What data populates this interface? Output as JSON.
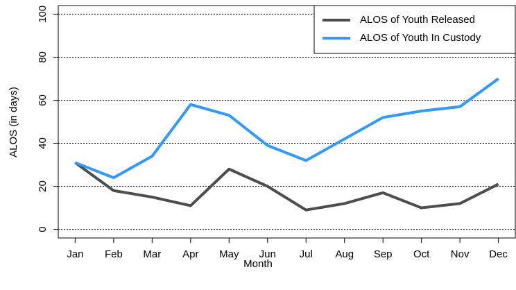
{
  "chart_data": {
    "type": "line",
    "x_label": "Month",
    "y_label": "ALOS (in days)",
    "categories": [
      "Jan",
      "Feb",
      "Mar",
      "Apr",
      "May",
      "Jun",
      "Jul",
      "Aug",
      "Sep",
      "Oct",
      "Nov",
      "Dec"
    ],
    "series": [
      {
        "name": "ALOS of Youth Released",
        "color": "#4d4d4d",
        "values": [
          31,
          18,
          15,
          11,
          28,
          20,
          9,
          12,
          17,
          10,
          12,
          21
        ]
      },
      {
        "name": "ALOS of Youth In Custody",
        "color": "#3399ff",
        "values": [
          31,
          24,
          34,
          58,
          53,
          39,
          32,
          42,
          52,
          55,
          57,
          70
        ]
      }
    ],
    "ylim": [
      -4,
      104
    ],
    "yticks": [
      0,
      20,
      40,
      60,
      80,
      100
    ],
    "grid": true,
    "legend": "topright"
  }
}
